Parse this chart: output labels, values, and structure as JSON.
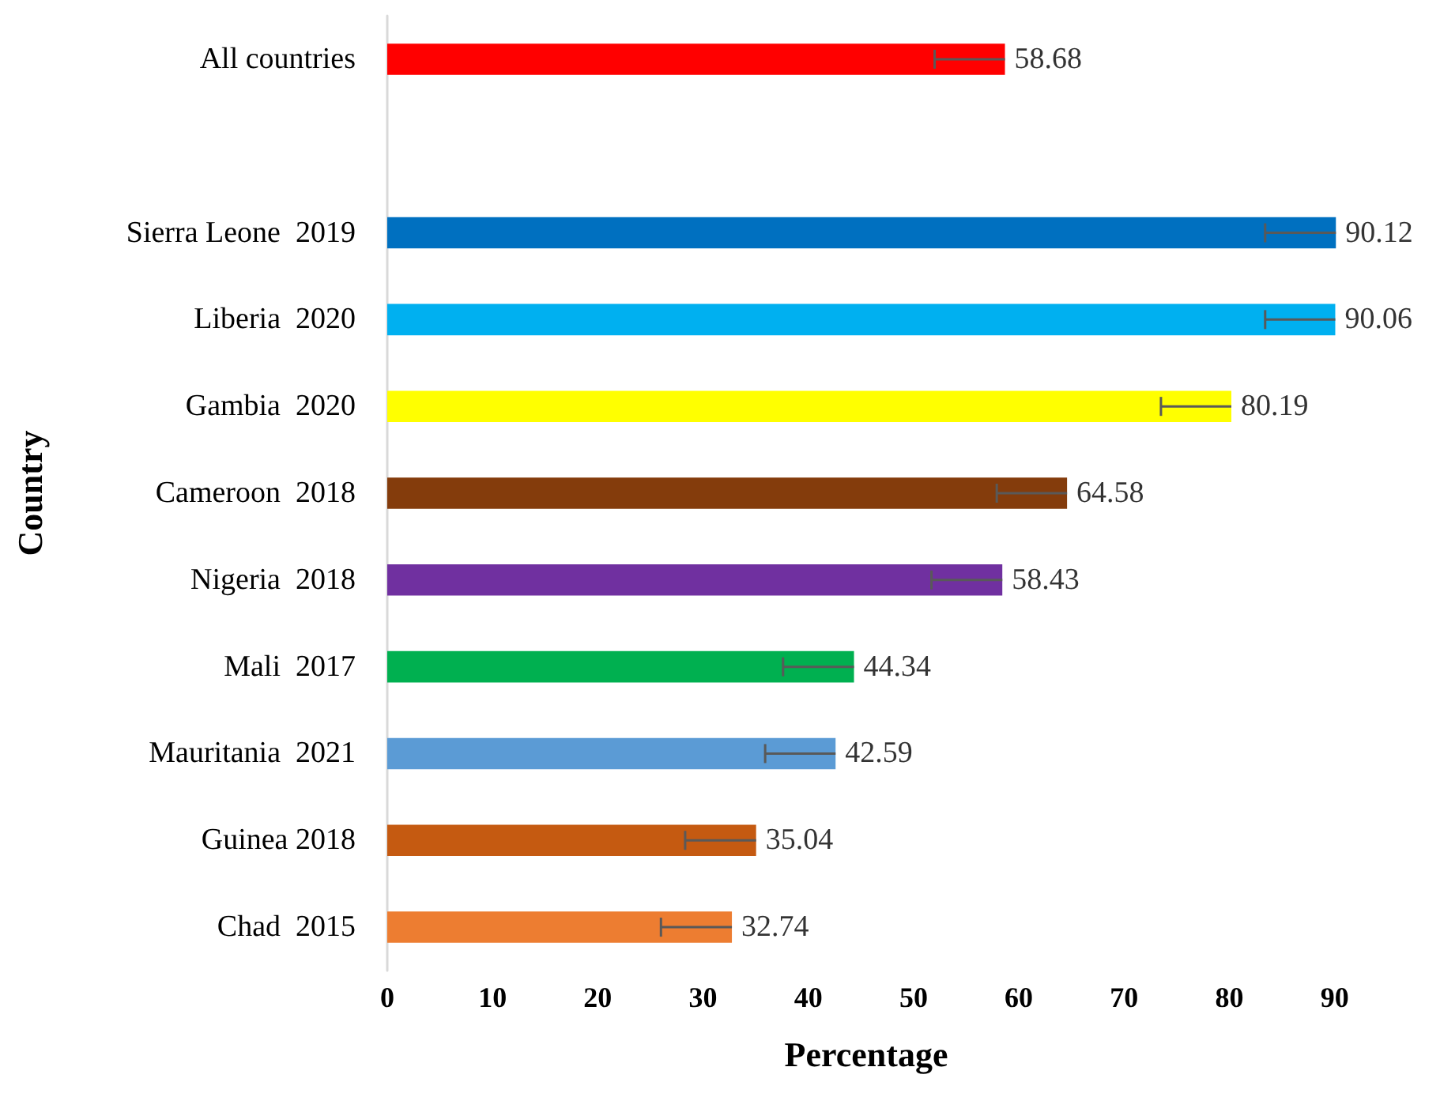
{
  "chart_data": {
    "type": "bar",
    "orientation": "horizontal",
    "xlabel": "Percentage",
    "ylabel": "Country",
    "categories": [
      "All countries",
      null,
      "Sierra Leone  2019",
      "Liberia  2020",
      "Gambia  2020",
      "Cameroon  2018",
      "Nigeria  2018",
      "Mali  2017",
      "Mauritania  2021",
      "Guinea 2018",
      "Chad  2015"
    ],
    "values": [
      58.68,
      null,
      90.12,
      90.06,
      80.19,
      64.58,
      58.43,
      44.34,
      42.59,
      35.04,
      32.74
    ],
    "colors": [
      "#ff0000",
      null,
      "#0070c0",
      "#00b0f0",
      "#ffff00",
      "#843c0c",
      "#7030a0",
      "#00b050",
      "#5b9bd5",
      "#c55a11",
      "#ed7d31"
    ],
    "errors": [
      [
        52.0,
        58.68
      ],
      null,
      [
        83.4,
        90.12
      ],
      [
        83.4,
        90.06
      ],
      [
        73.5,
        80.19
      ],
      [
        57.9,
        64.58
      ],
      [
        51.7,
        58.43
      ],
      [
        37.6,
        44.34
      ],
      [
        35.9,
        42.59
      ],
      [
        28.3,
        35.04
      ],
      [
        26.0,
        32.74
      ]
    ],
    "xlim": [
      0,
      91
    ],
    "xticks": [
      0,
      10,
      20,
      30,
      40,
      50,
      60,
      70,
      80,
      90
    ],
    "data_labels": true,
    "grid": false
  }
}
